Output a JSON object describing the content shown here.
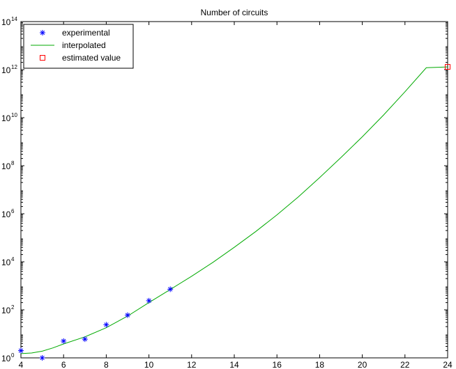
{
  "chart_data": {
    "type": "line",
    "title": "Number of circuits",
    "xlabel": "",
    "ylabel": "",
    "xlim": [
      4,
      24
    ],
    "ylim_log10": [
      0,
      14
    ],
    "yscale": "log",
    "grid": false,
    "legend_position": "top-left",
    "x_ticks": [
      "4",
      "6",
      "8",
      "10",
      "12",
      "14",
      "16",
      "18",
      "20",
      "22",
      "24"
    ],
    "y_ticks": [
      {
        "base": "10",
        "exp": "0",
        "log10": 0
      },
      {
        "base": "10",
        "exp": "2",
        "log10": 2
      },
      {
        "base": "10",
        "exp": "4",
        "log10": 4
      },
      {
        "base": "10",
        "exp": "6",
        "log10": 6
      },
      {
        "base": "10",
        "exp": "8",
        "log10": 8
      },
      {
        "base": "10",
        "exp": "10",
        "log10": 10
      },
      {
        "base": "10",
        "exp": "12",
        "log10": 12
      },
      {
        "base": "10",
        "exp": "14",
        "log10": 14
      }
    ],
    "series": [
      {
        "name": "experimental",
        "kind": "marker",
        "marker": "asterisk",
        "color": "#0000ff",
        "x": [
          4,
          5,
          6,
          7,
          8,
          9,
          10,
          11
        ],
        "y": [
          2,
          1,
          5,
          6,
          24,
          60,
          240,
          720
        ]
      },
      {
        "name": "interpolated",
        "kind": "line",
        "color": "#00aa00",
        "x": [
          4,
          4.5,
          5,
          5.5,
          6,
          7,
          8,
          9,
          10,
          11,
          12,
          13,
          14,
          15,
          16,
          17,
          18,
          19,
          20,
          21,
          22,
          23,
          24
        ],
        "y": [
          1.5,
          1.6,
          1.9,
          2.6,
          3.8,
          7.5,
          18,
          55,
          200,
          700,
          2500,
          9500,
          40000.0,
          180000.0,
          900000.0,
          5000000.0,
          32000000.0,
          220000000.0,
          1600000000.0,
          13000000000.0,
          120000000000.0,
          1200000000000.0,
          1300000000000.0
        ]
      },
      {
        "name": "estimated value",
        "kind": "marker",
        "marker": "square",
        "color": "#ff0000",
        "x": [
          24
        ],
        "y": [
          1300000000000.0
        ]
      }
    ]
  }
}
